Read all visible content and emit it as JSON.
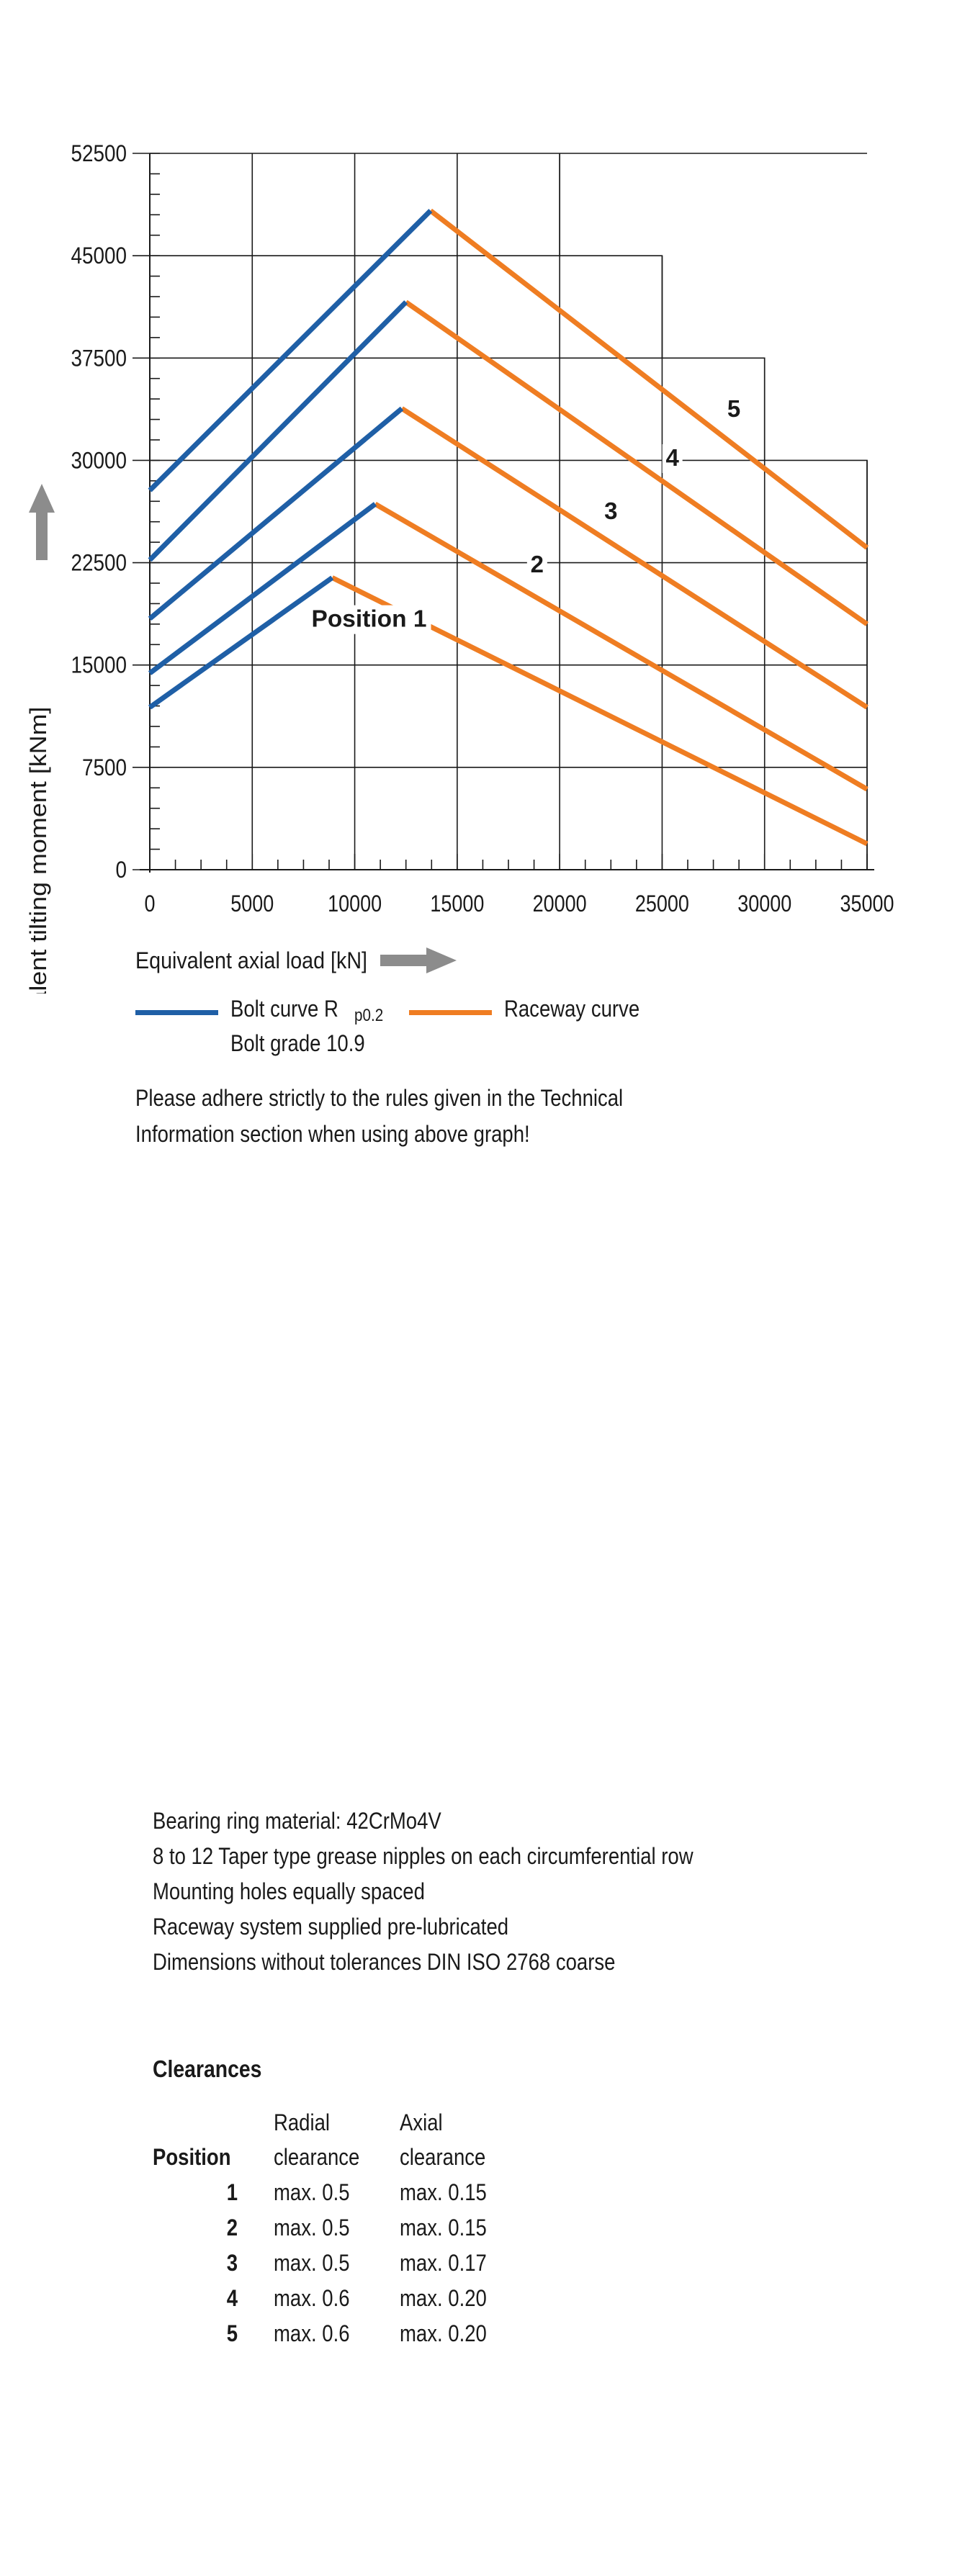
{
  "chart_data": {
    "type": "line",
    "xlabel": "Equivalent axial load [kN]",
    "ylabel": "Equivalent tilting moment [kNm]",
    "xlim": [
      0,
      35000
    ],
    "ylim": [
      0,
      52500
    ],
    "x_ticks": [
      0,
      5000,
      10000,
      15000,
      20000,
      25000,
      30000,
      35000
    ],
    "y_ticks": [
      0,
      7500,
      15000,
      22500,
      30000,
      37500,
      45000,
      52500
    ],
    "x_tick_labels": [
      "0",
      "5000",
      "10000",
      "15000",
      "20000",
      "25000",
      "30000",
      "35000"
    ],
    "y_tick_labels": [
      "0",
      "7500",
      "15000",
      "22500",
      "30000",
      "37500",
      "45000",
      "52500"
    ],
    "grid": true,
    "colors": {
      "bolt": "#1f5fa6",
      "raceway": "#ef7d22",
      "grid": "#1a1a1a",
      "arrow": "#8c8c8c"
    },
    "series": [
      {
        "position": "1",
        "label": "Position 1",
        "bolt": [
          [
            0,
            11900
          ],
          [
            8900,
            21400
          ]
        ],
        "raceway": [
          [
            8900,
            21400
          ],
          [
            35000,
            1900
          ]
        ]
      },
      {
        "position": "2",
        "label": "2",
        "bolt": [
          [
            0,
            14400
          ],
          [
            11000,
            26800
          ]
        ],
        "raceway": [
          [
            11000,
            26800
          ],
          [
            35000,
            5900
          ]
        ]
      },
      {
        "position": "3",
        "label": "3",
        "bolt": [
          [
            0,
            18400
          ],
          [
            12300,
            33800
          ]
        ],
        "raceway": [
          [
            12300,
            33800
          ],
          [
            35000,
            11900
          ]
        ]
      },
      {
        "position": "4",
        "label": "4",
        "bolt": [
          [
            0,
            22700
          ],
          [
            12500,
            41600
          ]
        ],
        "raceway": [
          [
            12500,
            41600
          ],
          [
            35000,
            18000
          ]
        ]
      },
      {
        "position": "5",
        "label": "5",
        "bolt": [
          [
            0,
            27800
          ],
          [
            13700,
            48300
          ]
        ],
        "raceway": [
          [
            13700,
            48300
          ],
          [
            35000,
            23600
          ]
        ]
      }
    ],
    "curve_label_points": [
      [
        10700,
        17800
      ],
      [
        18900,
        21800
      ],
      [
        22500,
        25700
      ],
      [
        25500,
        29600
      ],
      [
        28500,
        33200
      ]
    ],
    "step_boundary": [
      [
        20000,
        52500
      ],
      [
        20000,
        45000
      ],
      [
        25000,
        45000
      ],
      [
        25000,
        37500
      ],
      [
        30000,
        37500
      ],
      [
        30000,
        30000
      ],
      [
        35000,
        30000
      ],
      [
        35000,
        0
      ]
    ]
  },
  "legend": {
    "bolt_label": "Bolt curve  R",
    "bolt_subscript": "p0.2",
    "bolt_grade": "Bolt grade 10.9",
    "raceway_label": "Raceway curve"
  },
  "note": {
    "line1": "Please adhere strictly to the rules given in the Technical",
    "line2": "Information section when using above graph!"
  },
  "specs": [
    "Bearing ring material: 42CrMo4V",
    "8 to 12 Taper type grease nipples on each circumferential row",
    "Mounting holes equally spaced",
    "Raceway system supplied pre-lubricated",
    "Dimensions without tolerances DIN ISO 2768 coarse"
  ],
  "clearances": {
    "title": "Clearances",
    "col_position": "Position",
    "col_radial_1": "Radial",
    "col_radial_2": "clearance",
    "col_axial_1": "Axial",
    "col_axial_2": "clearance",
    "rows": [
      {
        "position": "1",
        "radial": "max. 0.5",
        "axial": "max. 0.15"
      },
      {
        "position": "2",
        "radial": "max. 0.5",
        "axial": "max. 0.15"
      },
      {
        "position": "3",
        "radial": "max. 0.5",
        "axial": "max. 0.17"
      },
      {
        "position": "4",
        "radial": "max. 0.6",
        "axial": "max. 0.20"
      },
      {
        "position": "5",
        "radial": "max. 0.6",
        "axial": "max. 0.20"
      }
    ]
  }
}
